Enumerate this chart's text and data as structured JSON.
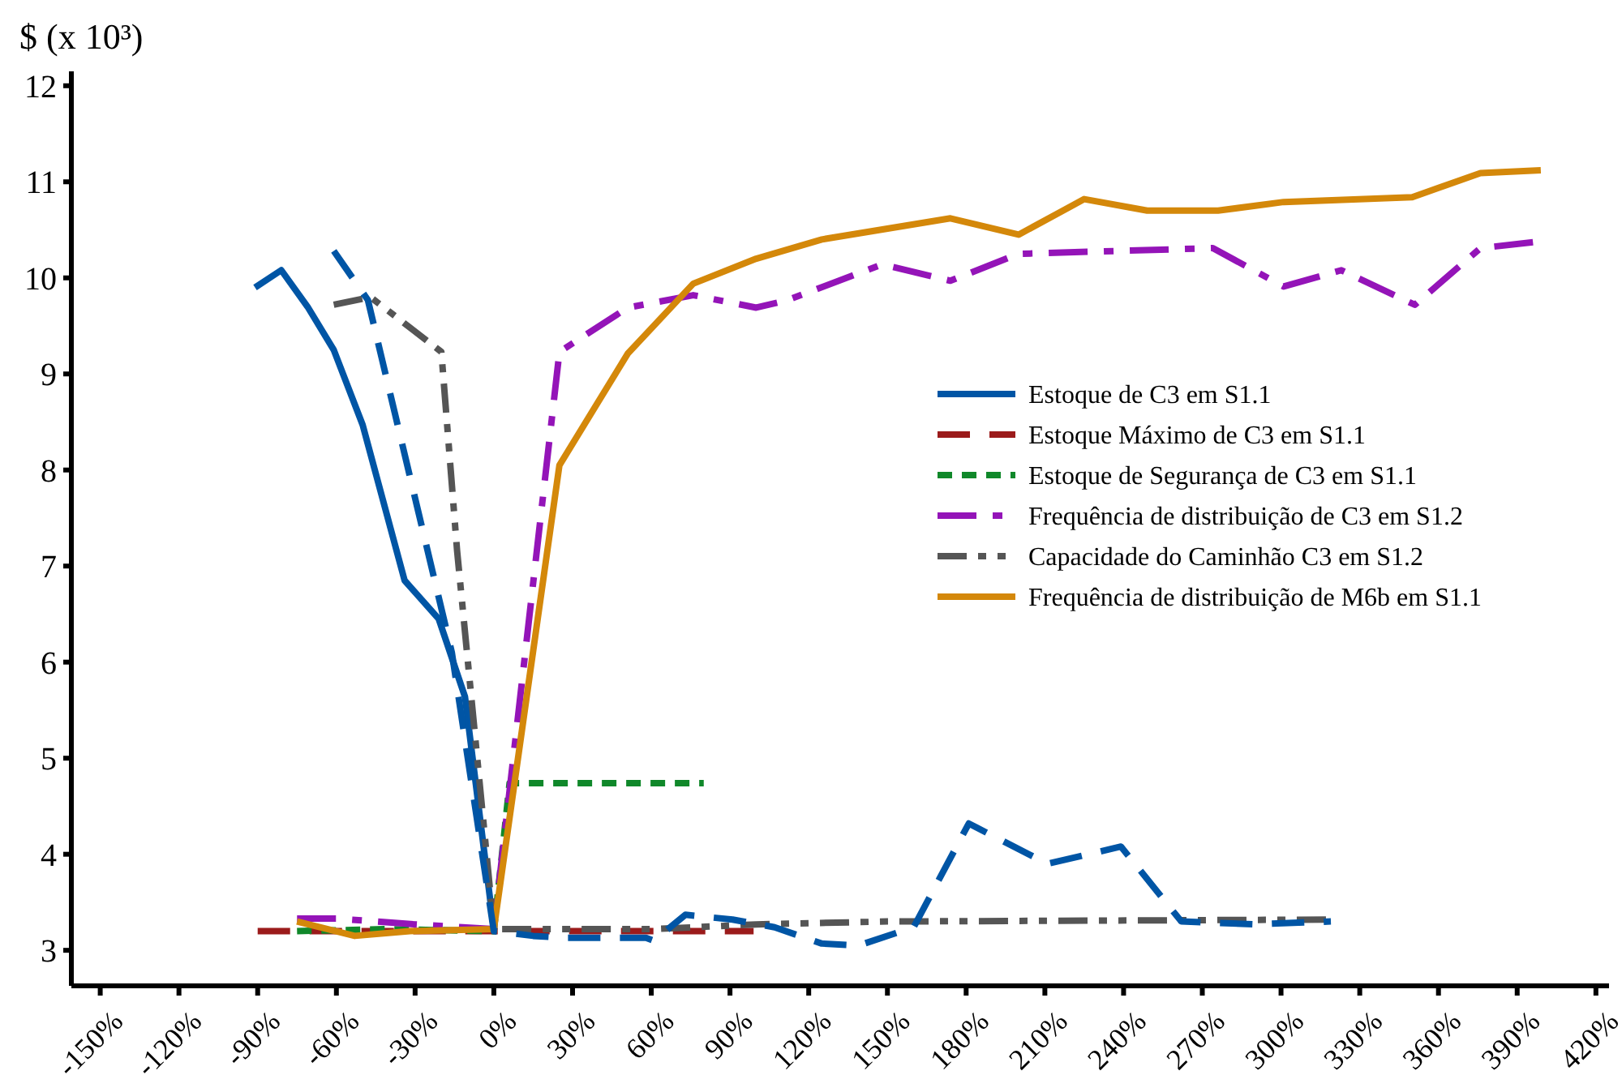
{
  "chart_data": {
    "type": "line",
    "ylabel": "$ (x 10³)",
    "xlim": [
      -161,
      425
    ],
    "ylim": [
      2.63,
      12.15
    ],
    "xticks": [
      {
        "value": -150,
        "label": "-150%"
      },
      {
        "value": -120,
        "label": "-120%"
      },
      {
        "value": -90,
        "label": "-90%"
      },
      {
        "value": -60,
        "label": "-60%"
      },
      {
        "value": -30,
        "label": "-30%"
      },
      {
        "value": 0,
        "label": "0%"
      },
      {
        "value": 30,
        "label": "30%"
      },
      {
        "value": 60,
        "label": "60%"
      },
      {
        "value": 90,
        "label": "90%"
      },
      {
        "value": 120,
        "label": "120%"
      },
      {
        "value": 150,
        "label": "150%"
      },
      {
        "value": 180,
        "label": "180%"
      },
      {
        "value": 210,
        "label": "210%"
      },
      {
        "value": 240,
        "label": "240%"
      },
      {
        "value": 270,
        "label": "270%"
      },
      {
        "value": 300,
        "label": "300%"
      },
      {
        "value": 330,
        "label": "330%"
      },
      {
        "value": 360,
        "label": "360%"
      },
      {
        "value": 390,
        "label": "390%"
      },
      {
        "value": 420,
        "label": "420%"
      }
    ],
    "yticks": [
      3,
      4,
      5,
      6,
      7,
      8,
      9,
      10,
      11,
      12
    ],
    "grid": false,
    "legend": "right",
    "series": [
      {
        "name": "Estoque de C3 em  S1.1",
        "color": "#0055a5",
        "line_style": "solid",
        "x": [
          -91,
          -81,
          -71,
          -61,
          -50,
          -34,
          -21,
          -11,
          0
        ],
        "values": [
          9.9,
          10.08,
          9.7,
          9.25,
          8.47,
          6.85,
          6.45,
          5.64,
          3.22
        ]
      },
      {
        "name": "Estoque Máximo de C3 em  S1.1",
        "color": "#9b1b1b",
        "line_style": "dashed",
        "x": [
          -90,
          99
        ],
        "values": [
          3.2,
          3.2
        ]
      },
      {
        "name": "Estoque de Segurança de C3 em  S1.1",
        "color": "#10882a",
        "line_style": "dotted",
        "x": [
          -75,
          -42,
          0,
          6,
          80
        ],
        "values": [
          3.2,
          3.22,
          3.2,
          4.74,
          4.74
        ]
      },
      {
        "name": "Frequência de distribuição de C3 em S1.2",
        "color": "#9414b8",
        "line_style": "dashdot",
        "x": [
          -75,
          -60,
          -30,
          0,
          25,
          51,
          76,
          100,
          111,
          148,
          174,
          200,
          274,
          301,
          323,
          351,
          376,
          399
        ],
        "values": [
          3.33,
          3.33,
          3.27,
          3.22,
          9.23,
          9.69,
          9.82,
          9.69,
          9.76,
          10.14,
          9.97,
          10.25,
          10.31,
          9.91,
          10.08,
          9.72,
          10.31,
          10.38
        ]
      },
      {
        "name": "Capacidade do Caminhão C3 em S1.2",
        "color": "#555555",
        "line_style": "dashdotdot",
        "x": [
          -61,
          -47,
          -20,
          -14,
          0,
          60,
          100,
          150,
          320
        ],
        "values": [
          9.72,
          9.8,
          9.23,
          7.16,
          3.22,
          3.22,
          3.27,
          3.3,
          3.32
        ]
      },
      {
        "name": "Frequência de distribuição de M6b em S1.1",
        "color": "#d4880a",
        "line_style": "solid",
        "x": [
          -75,
          -53,
          -32,
          0,
          25,
          51,
          76,
          100,
          125,
          174,
          200,
          225,
          249,
          276,
          301,
          350,
          376,
          399
        ],
        "values": [
          3.3,
          3.15,
          3.2,
          3.22,
          8.05,
          9.21,
          9.94,
          10.2,
          10.4,
          10.62,
          10.45,
          10.82,
          10.7,
          10.7,
          10.79,
          10.84,
          11.09,
          11.12
        ]
      },
      {
        "color": "#0055a5",
        "line_style": "dashed",
        "x": [
          -61,
          -48,
          -16,
          0,
          15,
          27,
          58,
          61,
          73,
          91,
          107,
          125,
          139,
          160,
          181,
          211,
          239,
          262,
          290,
          319
        ],
        "values": [
          10.28,
          9.77,
          6.1,
          3.2,
          3.15,
          3.13,
          3.13,
          3.1,
          3.37,
          3.32,
          3.24,
          3.07,
          3.05,
          3.24,
          4.32,
          3.9,
          4.08,
          3.3,
          3.27,
          3.3
        ]
      }
    ]
  }
}
